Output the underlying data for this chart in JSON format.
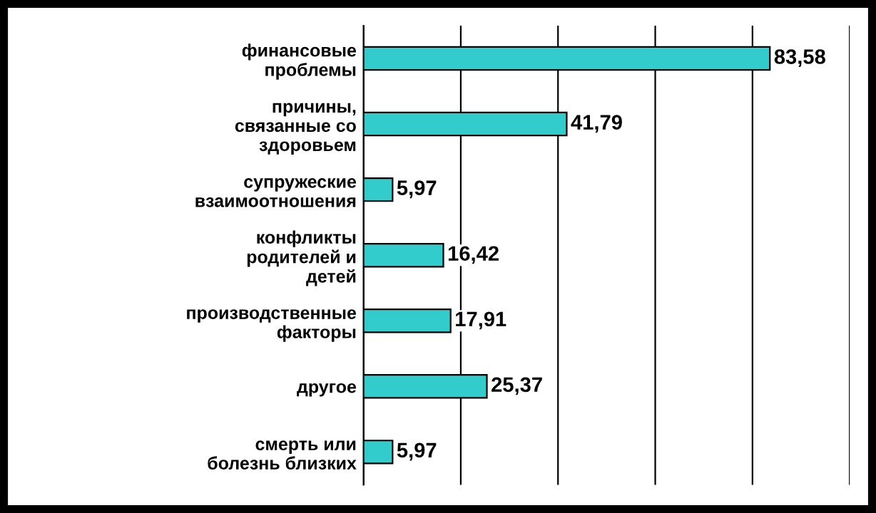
{
  "chart_data": {
    "type": "bar",
    "orientation": "horizontal",
    "categories": [
      "финансовые\nпроблемы",
      "причины,\nсвязанные со\nздоровьем",
      "супружеские\nвзаимоотношения",
      "конфликты\nродителей и\nдетей",
      "производственные\nфакторы",
      "другое",
      "смерть или\nболезнь близких"
    ],
    "values": [
      83.58,
      41.79,
      5.97,
      16.42,
      17.91,
      25.37,
      5.97
    ],
    "value_labels": [
      "83,58",
      "41,79",
      "5,97",
      "16,42",
      "17,91",
      "25,37",
      "5,97"
    ],
    "color": "#33cccc",
    "xlim": [
      0,
      100
    ],
    "xticks": [
      {
        "value": 0,
        "label": null
      },
      {
        "value": 20,
        "label": null
      },
      {
        "value": 40,
        "label": null
      },
      {
        "value": 60,
        "label": null
      },
      {
        "value": 80,
        "label": null
      },
      {
        "value": 100,
        "label": null
      }
    ],
    "grid": "x",
    "tick_labels": "y"
  }
}
